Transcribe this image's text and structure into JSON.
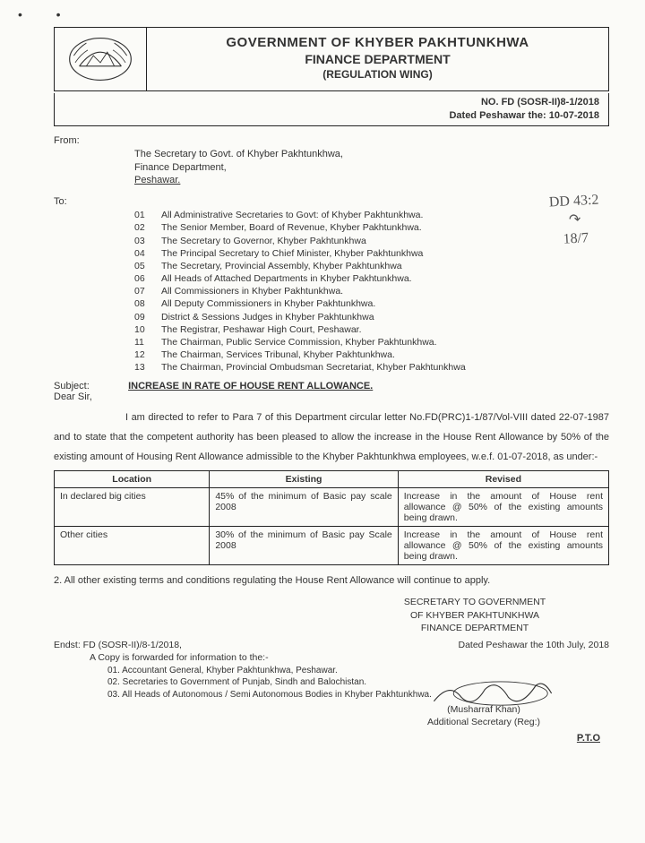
{
  "header": {
    "title1": "GOVERNMENT OF KHYBER PAKHTUNKHWA",
    "title2": "FINANCE DEPARTMENT",
    "title3": "(REGULATION WING)",
    "ref_no": "NO. FD (SOSR-II)8-1/2018",
    "ref_date": "Dated Peshawar the: 10-07-2018"
  },
  "from": {
    "label": "From:",
    "line1": "The Secretary to Govt. of Khyber Pakhtunkhwa,",
    "line2": "Finance Department,",
    "line3": "Peshawar."
  },
  "to": {
    "label": "To:",
    "items": [
      {
        "n": "01",
        "t": "All Administrative Secretaries to Govt: of Khyber Pakhtunkhwa."
      },
      {
        "n": "02",
        "t": "The Senior Member, Board of Revenue, Khyber Pakhtunkhwa."
      },
      {
        "n": "03",
        "t": "The Secretary to Governor, Khyber Pakhtunkhwa"
      },
      {
        "n": "04",
        "t": "The Principal Secretary to Chief Minister, Khyber Pakhtunkhwa"
      },
      {
        "n": "05",
        "t": "The Secretary, Provincial Assembly, Khyber Pakhtunkhwa"
      },
      {
        "n": "06",
        "t": "All Heads of Attached Departments in Khyber Pakhtunkhwa."
      },
      {
        "n": "07",
        "t": "All Commissioners in Khyber Pakhtunkhwa."
      },
      {
        "n": "08",
        "t": "All Deputy Commissioners in Khyber Pakhtunkhwa."
      },
      {
        "n": "09",
        "t": "District & Sessions Judges in Khyber Pakhtunkhwa"
      },
      {
        "n": "10",
        "t": "The Registrar, Peshawar High Court, Peshawar."
      },
      {
        "n": "11",
        "t": "The Chairman, Public Service Commission, Khyber Pakhtunkhwa."
      },
      {
        "n": "12",
        "t": "The Chairman, Services Tribunal, Khyber Pakhtunkhwa."
      },
      {
        "n": "13",
        "t": "The Chairman, Provincial Ombudsman Secretariat, Khyber Pakhtunkhwa"
      }
    ]
  },
  "handnote": {
    "l1": "DD 43:2",
    "l2": "↷",
    "l3": "18/7"
  },
  "subject": {
    "label": "Subject:",
    "value": "INCREASE IN RATE OF HOUSE RENT ALLOWANCE."
  },
  "salutation": "Dear Sir,",
  "body": "I am directed to refer to Para 7 of this Department circular letter No.FD(PRC)1-1/87/Vol-VIII dated 22-07-1987 and to state that the competent authority has been pleased to allow the increase in the House Rent Allowance by 50% of the existing amount of Housing Rent Allowance admissible to the Khyber Pakhtunkhwa employees, w.e.f. 01-07-2018, as under:-",
  "table": {
    "headers": {
      "c1": "Location",
      "c2": "Existing",
      "c3": "Revised"
    },
    "rows": [
      {
        "c1": "In declared big cities",
        "c2": "45% of the minimum of Basic pay scale 2008",
        "c3": "Increase in the amount of House rent allowance @ 50% of the existing amounts being drawn."
      },
      {
        "c1": "Other cities",
        "c2": "30% of the minimum of Basic pay Scale 2008",
        "c3": "Increase in the amount of House rent allowance @ 50% of the existing amounts being drawn."
      }
    ]
  },
  "para2": "2.            All other existing terms and conditions regulating the House Rent Allowance will continue to apply.",
  "sig_block": {
    "l1": "SECRETARY TO GOVERNMENT",
    "l2": "OF KHYBER PAKHTUNKHWA",
    "l3": "FINANCE DEPARTMENT"
  },
  "endst": {
    "left": "Endst: FD (SOSR-II)/8-1/2018,",
    "right": "Dated Peshawar the 10th July, 2018"
  },
  "copy_line": "A Copy is forwarded for information to the:-",
  "copy_items": [
    "01. Accountant General, Khyber Pakhtunkhwa, Peshawar.",
    "02. Secretaries to Government of Punjab, Sindh and Balochistan.",
    "03. All Heads of Autonomous / Semi Autonomous Bodies in Khyber Pakhtunkhwa."
  ],
  "signer": {
    "name": "(Musharraf Khan)",
    "title": "Additional Secretary (Reg:)"
  },
  "pto": "P.T.O"
}
